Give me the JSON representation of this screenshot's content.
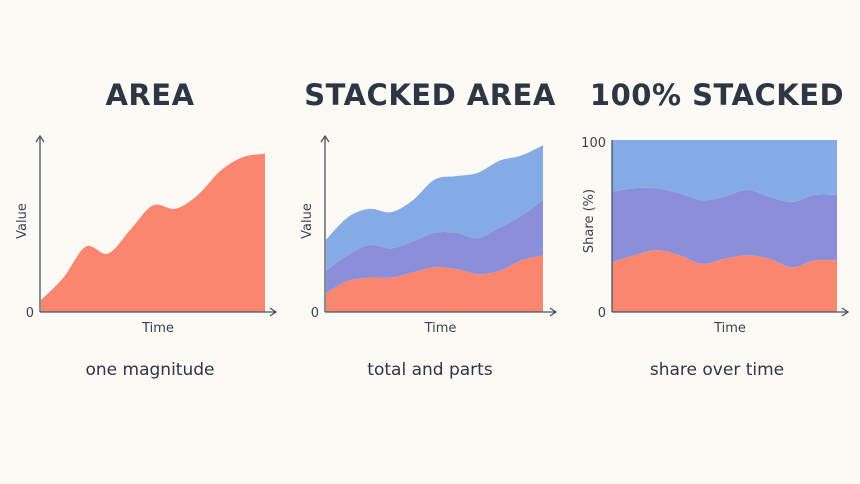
{
  "colors": {
    "bottom": "#fb8670",
    "middle": "#8b8fda",
    "top": "#85abe6",
    "axis": "#4a5260",
    "background": "#fbfaf4"
  },
  "chart_data": [
    {
      "type": "area",
      "title": "AREA",
      "caption": "one magnitude",
      "xlabel": "Time",
      "ylabel": "Value",
      "y_tick_labels": [
        "0"
      ],
      "grid": false,
      "ylim": [
        0,
        100
      ],
      "x": [
        0,
        1,
        2,
        3,
        4,
        5,
        6,
        7,
        8,
        9,
        10
      ],
      "series": [
        {
          "values": [
            7,
            20,
            38,
            34,
            48,
            62,
            60,
            68,
            82,
            90,
            92
          ]
        }
      ]
    },
    {
      "type": "area",
      "stacked": true,
      "title": "STACKED AREA",
      "caption": "total and parts",
      "xlabel": "Time",
      "ylabel": "Value",
      "y_tick_labels": [
        "0"
      ],
      "grid": false,
      "ylim": [
        0,
        100
      ],
      "x": [
        0,
        1,
        2,
        3,
        4,
        5,
        6,
        7,
        8,
        9,
        10
      ],
      "series": [
        {
          "values": [
            11,
            18,
            20,
            20,
            23,
            26,
            25,
            22,
            24,
            30,
            33
          ]
        },
        {
          "values": [
            13,
            15,
            19,
            17,
            18,
            20,
            21,
            21,
            25,
            26,
            32
          ]
        },
        {
          "values": [
            18,
            22,
            21,
            21,
            24,
            31,
            33,
            38,
            39,
            35,
            32
          ]
        }
      ]
    },
    {
      "type": "area",
      "stacked": "percent",
      "title": "100% STACKED",
      "caption": "share over time",
      "xlabel": "Time",
      "ylabel": "Share (%)",
      "y_tick_labels": [
        "0",
        "100"
      ],
      "grid": false,
      "ylim": [
        0,
        100
      ],
      "x": [
        0,
        1,
        2,
        3,
        4,
        5,
        6,
        7,
        8,
        9,
        10
      ],
      "series": [
        {
          "values": [
            29,
            33,
            36,
            33,
            28,
            31,
            33,
            31,
            26,
            30,
            30
          ]
        },
        {
          "values": [
            41,
            39,
            36,
            36,
            37,
            36,
            38,
            36,
            38,
            38,
            38
          ]
        },
        {
          "values": [
            30,
            28,
            28,
            31,
            35,
            33,
            29,
            33,
            36,
            32,
            32
          ]
        }
      ]
    }
  ]
}
